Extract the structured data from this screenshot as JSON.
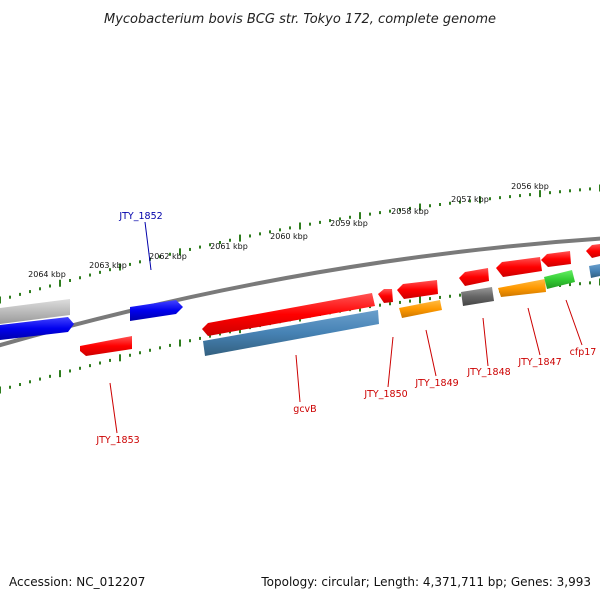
{
  "title": "Mycobacterium bovis BCG str. Tokyo 172, complete genome",
  "footer": {
    "accession": "Accession: NC_012207",
    "summary": "Topology: circular; Length: 4,371,711 bp; Genes: 3,993"
  },
  "scale_labels": [
    "2064 kbp",
    "2063 kbp",
    "2062 kbp",
    "2061 kbp",
    "2060 kbp",
    "2059 kbp",
    "2058 kbp",
    "2057 kbp",
    "2056 kbp"
  ],
  "gene_labels": [
    {
      "text": "JTY_1852",
      "color": "#0000aa"
    },
    {
      "text": "JTY_1853",
      "color": "#cc0000"
    },
    {
      "text": "gcvB",
      "color": "#cc0000"
    },
    {
      "text": "JTY_1850",
      "color": "#cc0000"
    },
    {
      "text": "JTY_1849",
      "color": "#cc0000"
    },
    {
      "text": "JTY_1848",
      "color": "#cc0000"
    },
    {
      "text": "JTY_1847",
      "color": "#cc0000"
    },
    {
      "text": "cfp17",
      "color": "#cc0000"
    }
  ],
  "colors": {
    "backbone": "#7a7a7a",
    "tick": "#2e7d1e",
    "gene_red": "#ff0000",
    "gene_blue": "#0000ee",
    "gene_steelblue": "#4682b4",
    "gene_orange": "#ff9900",
    "gene_gray": "#666666",
    "gene_lightgray": "#bbbbbb",
    "gene_green": "#33cc33"
  }
}
